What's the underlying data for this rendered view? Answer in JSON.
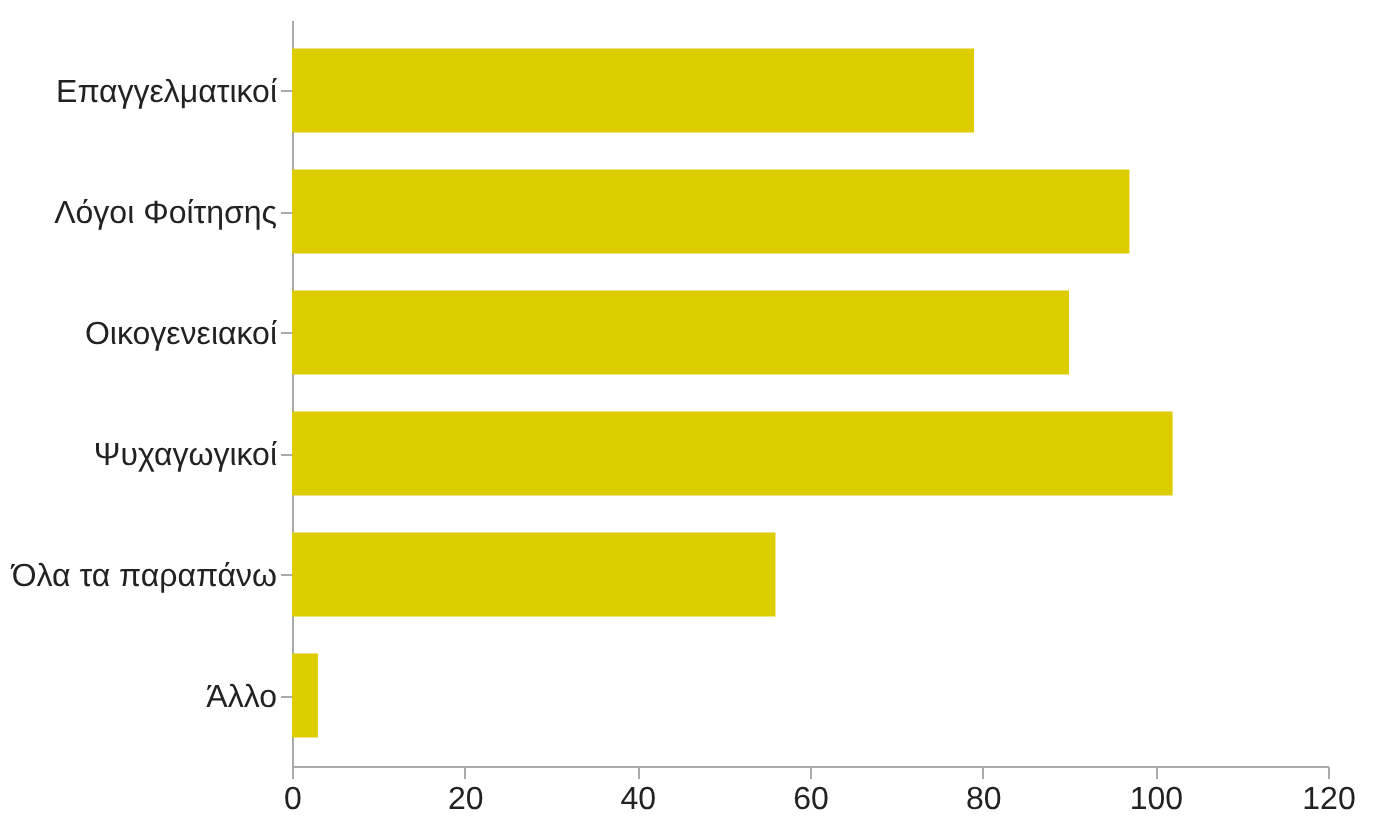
{
  "chart_data": {
    "type": "bar",
    "orientation": "horizontal",
    "categories": [
      "Επαγγελματικοί",
      "Λόγοι Φοίτησης",
      "Οικογενειακοί",
      "Ψυχαγωγικοί",
      "Όλα τα παραπάνω",
      "Άλλο"
    ],
    "values": [
      79,
      97,
      90,
      102,
      56,
      3
    ],
    "color": "#dccc00",
    "xlim": [
      0,
      120
    ],
    "xticks": [
      0,
      20,
      40,
      60,
      80,
      100,
      120
    ],
    "grid": false
  }
}
